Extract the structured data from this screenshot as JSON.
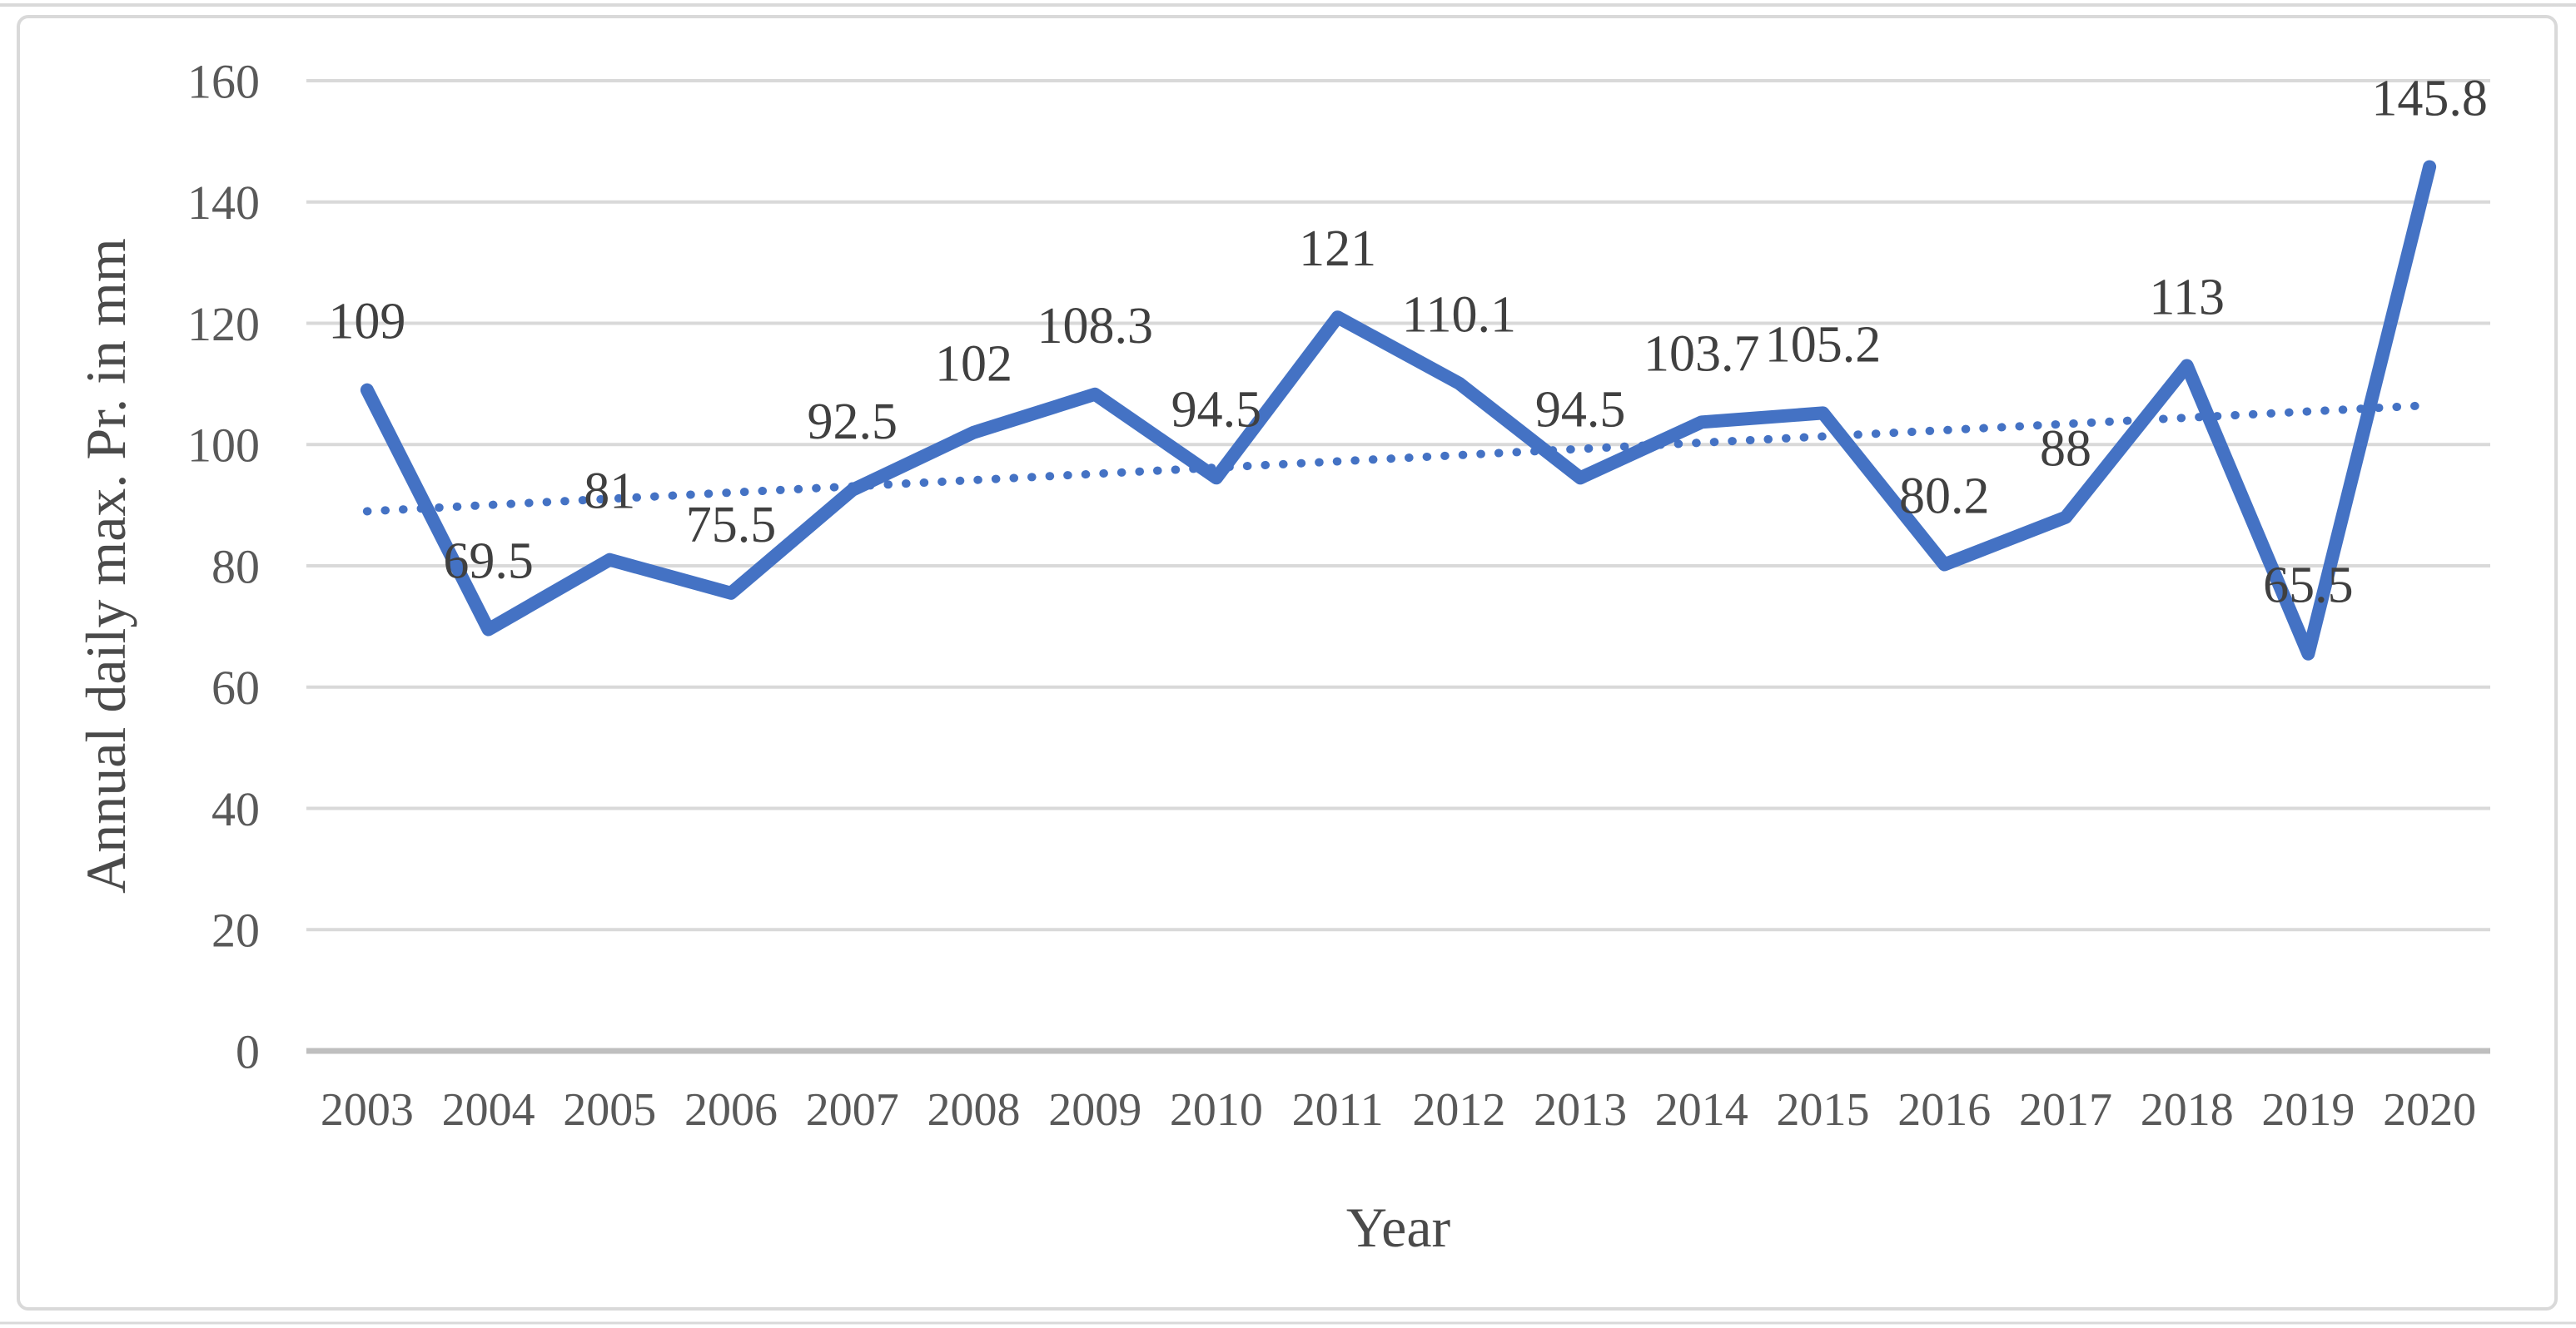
{
  "figure": {
    "background": "#ffffff",
    "frame_border_color": "#d9d9d9",
    "outer_rule_color": "#d9d9d9"
  },
  "chart_data": {
    "type": "line",
    "title": "",
    "x": [
      "2003",
      "2004",
      "2005",
      "2006",
      "2007",
      "2008",
      "2009",
      "2010",
      "2011",
      "2012",
      "2013",
      "2014",
      "2015",
      "2016",
      "2017",
      "2018",
      "2019",
      "2020"
    ],
    "series": [
      {
        "name": "Annual daily max. Pr.",
        "values": [
          109,
          69.5,
          81,
          75.5,
          92.5,
          102,
          108.3,
          94.5,
          121,
          110.1,
          94.5,
          103.7,
          105.2,
          80.2,
          88,
          113,
          65.5,
          145.8
        ],
        "labels": [
          "109",
          "69.5",
          "81",
          "75.5",
          "92.5",
          "102",
          "108.3",
          "94.5",
          "121",
          "110.1",
          "94.5",
          "103.7",
          "105.2",
          "80.2",
          "88",
          "113",
          "65.5",
          "145.8"
        ],
        "color": "#4472C4",
        "line_width": 16
      }
    ],
    "trendline": {
      "type": "linear",
      "style": "dotted",
      "color": "#4472C4"
    },
    "xlabel": "Year",
    "ylabel": "Annual daily max. Pr. in mm",
    "ylim": [
      0,
      160
    ],
    "yticks": [
      "0",
      "20",
      "40",
      "60",
      "80",
      "100",
      "120",
      "140",
      "160"
    ],
    "grid": true,
    "legend": "none",
    "colors": {
      "gridline": "#d9d9d9",
      "axis_line": "#bfbfbf",
      "tick_text": "#595959",
      "label_text": "#404040",
      "title_text": "#4a4a4a"
    }
  }
}
